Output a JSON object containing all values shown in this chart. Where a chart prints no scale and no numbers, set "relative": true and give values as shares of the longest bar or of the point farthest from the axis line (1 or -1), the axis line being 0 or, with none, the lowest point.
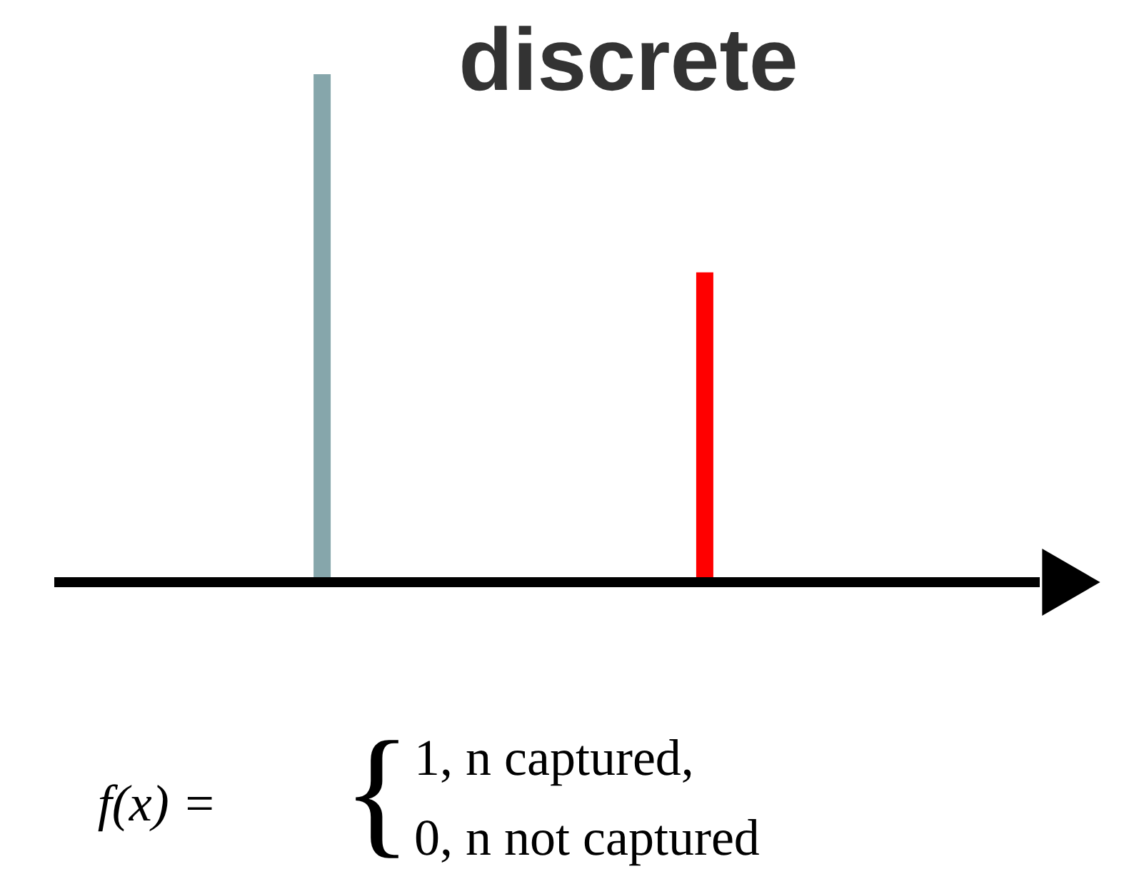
{
  "chart_data": {
    "type": "bar",
    "title": "discrete",
    "relative": true,
    "categories": [
      null,
      null
    ],
    "colors": [
      "#86a6ab",
      "#ff0000"
    ],
    "values": [
      1,
      0.61
    ],
    "annotations": [
      "f(x) =",
      "{",
      "1,   n captured,",
      "0,   n not captured"
    ]
  }
}
